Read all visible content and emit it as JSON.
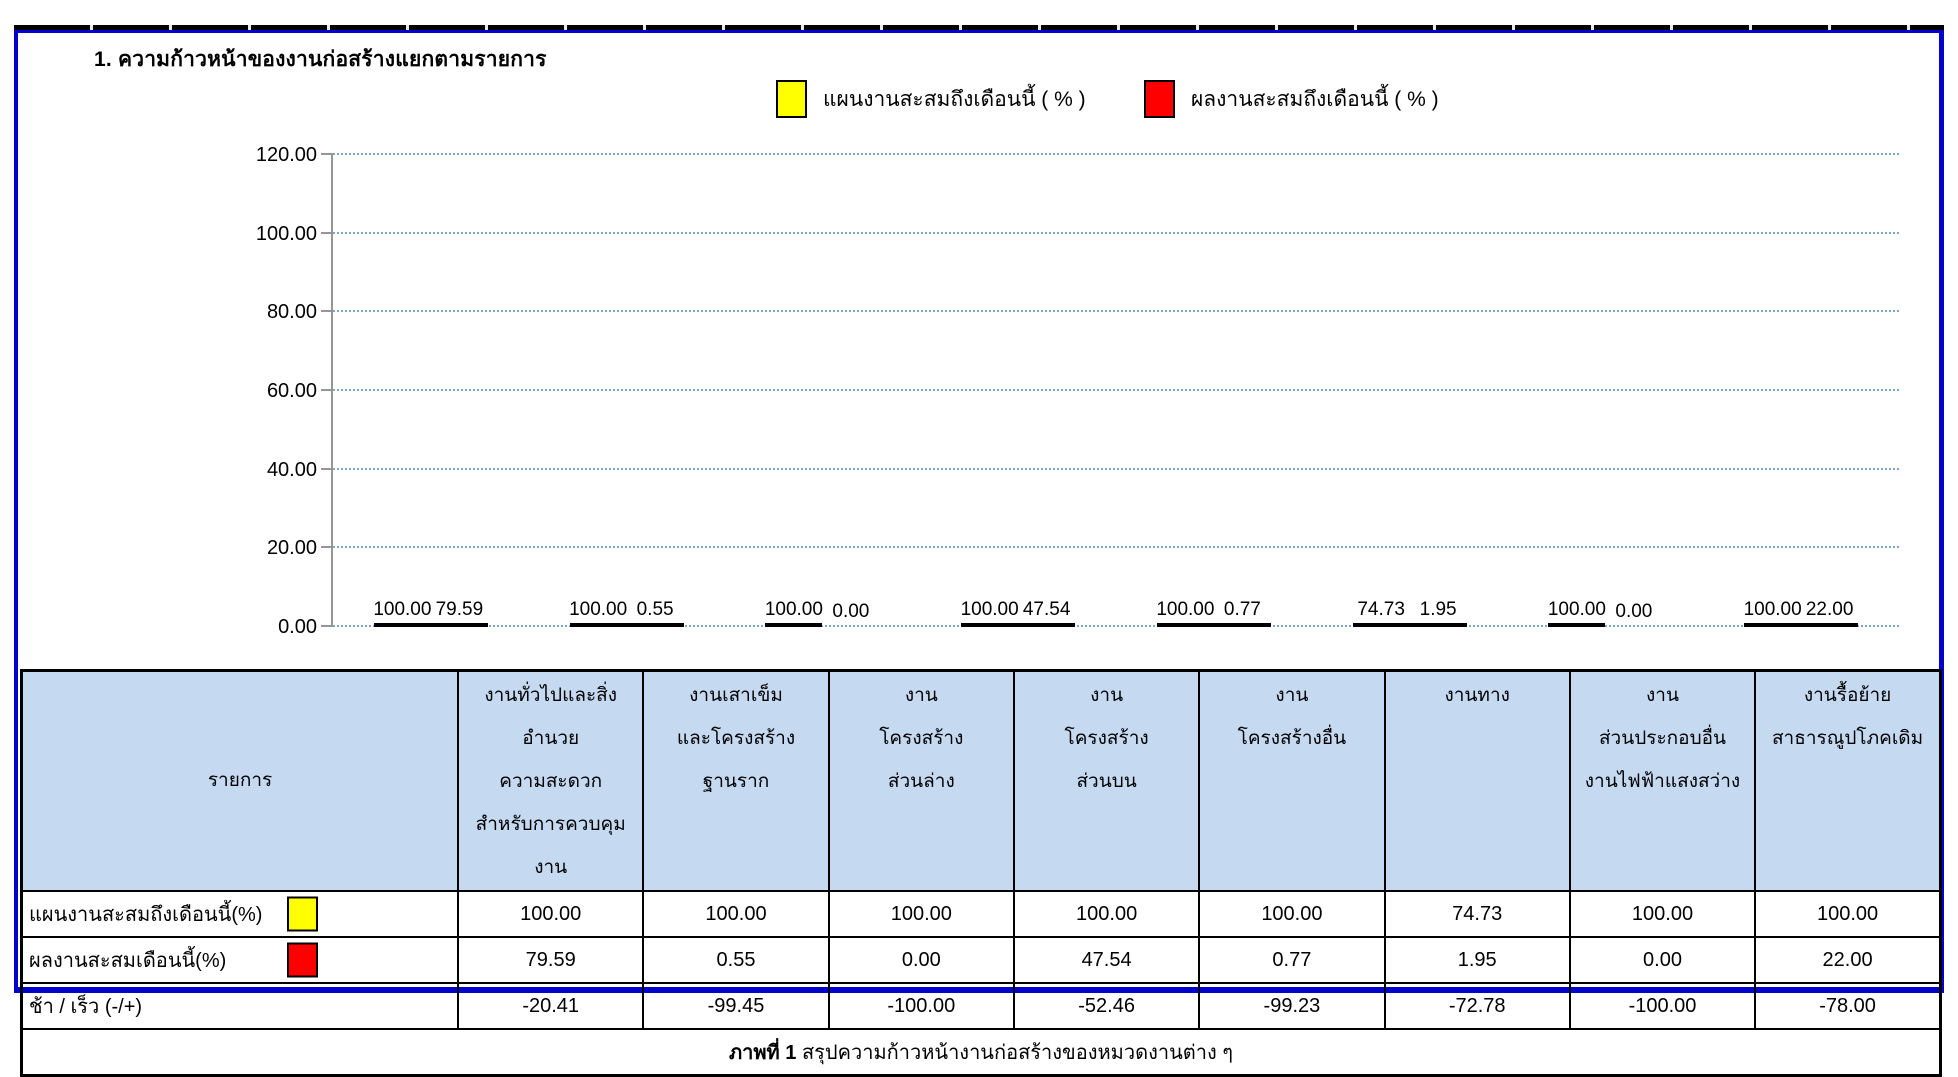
{
  "page": {
    "title": "1. ความก้าวหน้าของงานก่อสร้างแยกตามรายการ",
    "frame_border_color": "#0202cc"
  },
  "legend": [
    {
      "label": "แผนงานสะสมถึงเดือนนี้ ( % )",
      "color": "#FFFF00"
    },
    {
      "label": "ผลงานสะสมถึงเดือนนี้ ( % )",
      "color": "#FF0000"
    }
  ],
  "chart_data": {
    "type": "bar",
    "title": "1. ความก้าวหน้าของงานก่อสร้างแยกตามรายการ",
    "categories": [
      "งานทั่วไปและสิ่งอำนวยความสะดวกสำหรับการควบคุมงาน",
      "งานเสาเข็มและโครงสร้างฐานราก",
      "งานโครงสร้างส่วนล่าง",
      "งานโครงสร้างส่วนบน",
      "งานโครงสร้างอื่น",
      "งานทาง",
      "งานส่วนประกอบอื่น งานไฟฟ้าแสงสว่าง",
      "งานรื้อย้ายสาธารณูปโภคเดิม"
    ],
    "series": [
      {
        "name": "แผนงานสะสมถึงเดือนนี้ ( % )",
        "color": "#FFFF00",
        "values": [
          100.0,
          100.0,
          100.0,
          100.0,
          100.0,
          74.73,
          100.0,
          100.0
        ],
        "labels": [
          "100.00",
          "100.00",
          "100.00",
          "100.00",
          "100.00",
          "74.73",
          "100.00",
          "100.00"
        ]
      },
      {
        "name": "ผลงานสะสมถึงเดือนนี้ ( % )",
        "color": "#FF0000",
        "values": [
          79.59,
          0.55,
          0.0,
          47.54,
          0.77,
          1.95,
          0.0,
          22.0
        ],
        "labels": [
          "79.59",
          "0.55",
          "0.00",
          "47.54",
          "0.77",
          "1.95",
          "0.00",
          "22.00"
        ]
      }
    ],
    "xlabel": "",
    "ylabel": "",
    "ylim": [
      0,
      120
    ],
    "ytick_values": [
      0,
      20,
      40,
      60,
      80,
      100,
      120
    ],
    "ytick_labels": [
      "0.00",
      "20.00",
      "40.00",
      "60.00",
      "80.00",
      "100.00",
      "120.00"
    ],
    "grid": "horizontal-dotted",
    "gridline_color": "#7da4d4",
    "legend_position": "top"
  },
  "table": {
    "header": [
      {
        "lines": [
          "รายการ"
        ]
      },
      {
        "lines": [
          "งานทั่วไปและสิ่งอำนวย",
          "ความสะดวก",
          "สำหรับการควบคุมงาน"
        ]
      },
      {
        "lines": [
          "งานเสาเข็ม",
          "และโครงสร้าง",
          "ฐานราก"
        ]
      },
      {
        "lines": [
          "งาน",
          "โครงสร้าง",
          "ส่วนล่าง"
        ]
      },
      {
        "lines": [
          "งาน",
          "โครงสร้าง",
          "ส่วนบน"
        ]
      },
      {
        "lines": [
          "งาน",
          "โครงสร้างอื่น"
        ]
      },
      {
        "lines": [
          "งานทาง"
        ]
      },
      {
        "lines": [
          "งาน",
          "ส่วนประกอบอื่น",
          "งานไฟฟ้าแสงสว่าง"
        ]
      },
      {
        "lines": [
          "งานรื้อย้าย",
          "สาธารณูปโภคเดิม"
        ]
      }
    ],
    "rows": [
      {
        "label": "แผนงานสะสมถึงเดือนนี้(%)",
        "swatch_color": "#FFFF00",
        "values": [
          "100.00",
          "100.00",
          "100.00",
          "100.00",
          "100.00",
          "74.73",
          "100.00",
          "100.00"
        ]
      },
      {
        "label": "ผลงานสะสมเดือนนี้(%)",
        "swatch_color": "#FF0000",
        "values": [
          "79.59",
          "0.55",
          "0.00",
          "47.54",
          "0.77",
          "1.95",
          "0.00",
          "22.00"
        ]
      },
      {
        "label": "ช้า / เร็ว  (-/+)",
        "swatch_color": null,
        "values": [
          "-20.41",
          "-99.45",
          "-100.00",
          "-52.46",
          "-99.23",
          "-72.78",
          "-100.00",
          "-78.00"
        ]
      }
    ],
    "caption": {
      "prefix": "ภาพที่ 1",
      "text": " สรุปความก้าวหน้างานก่อสร้างของหมวดงานต่าง ๆ"
    }
  }
}
